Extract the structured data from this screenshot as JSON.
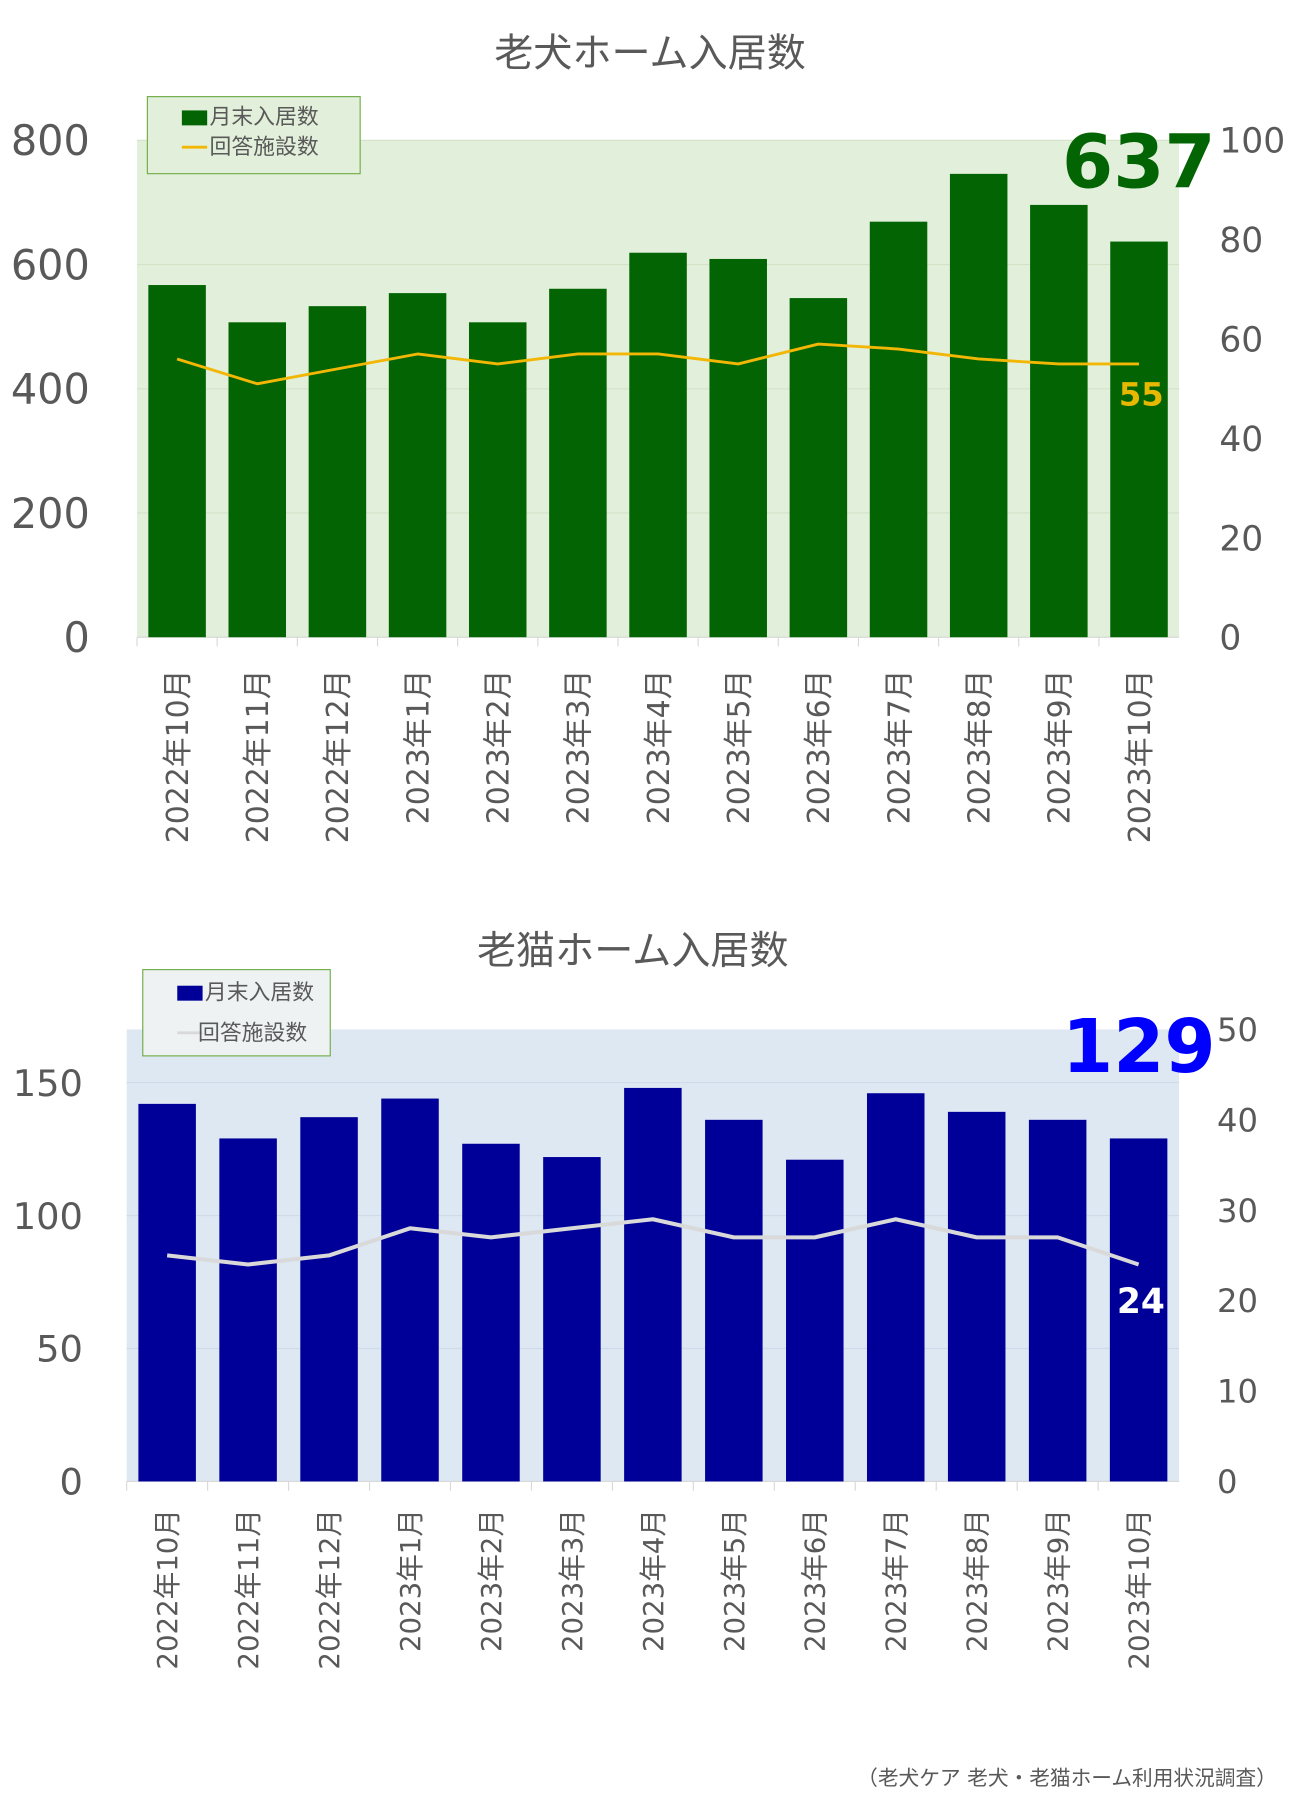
{
  "chart_data": [
    {
      "type": "bar+line",
      "title": "老犬ホーム入居数",
      "categories": [
        "2022年10月",
        "2022年11月",
        "2022年12月",
        "2023年1月",
        "2023年2月",
        "2023年3月",
        "2023年4月",
        "2023年5月",
        "2023年6月",
        "2023年7月",
        "2023年8月",
        "2023年9月",
        "2023年10月"
      ],
      "series": [
        {
          "name": "月末入居数",
          "type": "bar",
          "axis": "left",
          "color": "#036403",
          "values": [
            567,
            507,
            533,
            554,
            507,
            561,
            619,
            609,
            546,
            669,
            746,
            696,
            637
          ]
        },
        {
          "name": "回答施設数",
          "type": "line",
          "axis": "right",
          "color": "#f2b705",
          "values": [
            56,
            51,
            54,
            57,
            55,
            57,
            57,
            55,
            59,
            58,
            56,
            55,
            55
          ]
        }
      ],
      "y_left": {
        "range": [
          0,
          800
        ],
        "ticks": [
          "0",
          "200",
          "400",
          "600",
          "800"
        ]
      },
      "y_right": {
        "range": [
          0,
          100
        ],
        "ticks": [
          "0",
          "20",
          "40",
          "60",
          "80",
          "100"
        ]
      },
      "highlight_bar_label": "637",
      "highlight_line_label": "55",
      "plot_bg": "#e2efda",
      "legend": "top-left",
      "grid": true
    },
    {
      "type": "bar+line",
      "title": "老猫ホーム入居数",
      "categories": [
        "2022年10月",
        "2022年11月",
        "2022年12月",
        "2023年1月",
        "2023年2月",
        "2023年3月",
        "2023年4月",
        "2023年5月",
        "2023年6月",
        "2023年7月",
        "2023年8月",
        "2023年9月",
        "2023年10月"
      ],
      "series": [
        {
          "name": "月末入居数",
          "type": "bar",
          "axis": "left",
          "color": "#000099",
          "values": [
            142,
            129,
            137,
            144,
            127,
            122,
            148,
            136,
            121,
            146,
            139,
            136,
            129
          ]
        },
        {
          "name": "回答施設数",
          "type": "line",
          "axis": "right",
          "color": "#d9d9d9",
          "values": [
            25,
            24,
            25,
            28,
            27,
            28,
            29,
            27,
            27,
            29,
            27,
            27,
            24
          ]
        }
      ],
      "y_left": {
        "range": [
          0,
          170
        ],
        "ticks": [
          "0",
          "50",
          "100",
          "150"
        ]
      },
      "y_right": {
        "range": [
          0,
          50
        ],
        "ticks": [
          "0",
          "10",
          "20",
          "30",
          "40",
          "50"
        ]
      },
      "highlight_bar_label": "129",
      "highlight_line_label": "24",
      "plot_bg": "#dde8f3",
      "legend": "top-left",
      "grid": true
    }
  ],
  "footer": "（老犬ケア 老犬・老猫ホーム利用状況調査）"
}
